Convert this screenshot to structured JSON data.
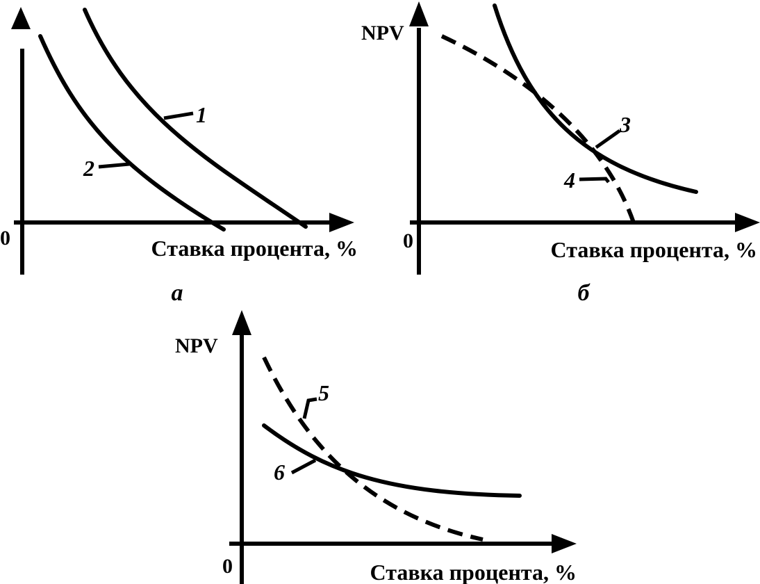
{
  "chart_data": [
    {
      "panel": "a",
      "type": "line",
      "ylabel": "",
      "xlabel": "Ставка процента, %",
      "origin_label": "0",
      "panel_label": "а",
      "series": [
        {
          "name": "1",
          "style": "solid",
          "x": [
            0.25,
            0.35,
            0.5,
            0.65,
            0.8,
            0.9
          ],
          "y": [
            1.0,
            0.82,
            0.6,
            0.38,
            0.16,
            0.0
          ]
        },
        {
          "name": "2",
          "style": "solid",
          "x": [
            0.06,
            0.15,
            0.28,
            0.42,
            0.56,
            0.62
          ],
          "y": [
            0.88,
            0.66,
            0.44,
            0.22,
            0.03,
            -0.04
          ]
        }
      ]
    },
    {
      "panel": "b",
      "type": "line",
      "ylabel": "NPV",
      "xlabel": "Ставка процента, %",
      "origin_label": "0",
      "panel_label": "б",
      "series": [
        {
          "name": "3",
          "style": "solid",
          "x": [
            0.22,
            0.3,
            0.4,
            0.5,
            0.62,
            0.78
          ],
          "y": [
            1.0,
            0.7,
            0.5,
            0.35,
            0.23,
            0.14
          ]
        },
        {
          "name": "4",
          "style": "dashed",
          "x": [
            0.05,
            0.2,
            0.35,
            0.45,
            0.55,
            0.62
          ],
          "y": [
            0.91,
            0.8,
            0.61,
            0.44,
            0.18,
            0.0
          ]
        }
      ]
    },
    {
      "panel": "c",
      "type": "line",
      "ylabel": "NPV",
      "xlabel": "Ставка процента, %",
      "origin_label": "0",
      "panel_label": "",
      "series": [
        {
          "name": "5",
          "style": "dashed",
          "x": [
            0.08,
            0.18,
            0.3,
            0.45,
            0.6,
            0.75
          ],
          "y": [
            0.95,
            0.65,
            0.38,
            0.24,
            0.12,
            0.04
          ]
        },
        {
          "name": "6",
          "style": "solid",
          "x": [
            0.08,
            0.2,
            0.35,
            0.5,
            0.68,
            0.95
          ],
          "y": [
            0.6,
            0.48,
            0.38,
            0.32,
            0.29,
            0.28
          ]
        }
      ]
    }
  ]
}
